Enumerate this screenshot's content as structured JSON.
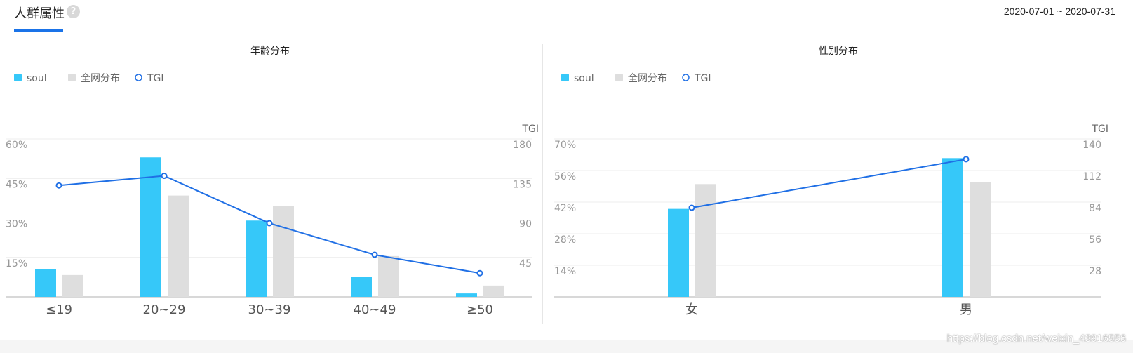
{
  "header": {
    "title": "人群属性",
    "help_icon": "question-circle-icon",
    "date_range": "2020-07-01 ~ 2020-07-31"
  },
  "watermark": "https://blog.csdn.net/weixin_43916556",
  "colors": {
    "soul": "#36c8f9",
    "all": "#dedede",
    "tgi": "#1f6fe5",
    "accent": "#1a73e8"
  },
  "chart_data": [
    {
      "type": "bar",
      "title": "年龄分布",
      "legend": [
        "soul",
        "全网分布",
        "TGI"
      ],
      "legend_position": "top-left",
      "categories": [
        "≤19",
        "20~29",
        "30~39",
        "40~49",
        "≥50"
      ],
      "series": [
        {
          "name": "soul",
          "type": "bar",
          "values": [
            10.5,
            53,
            29,
            7.5,
            1.3
          ]
        },
        {
          "name": "全网分布",
          "type": "bar",
          "values": [
            8.3,
            38.5,
            34.5,
            15.5,
            4.3
          ]
        },
        {
          "name": "TGI",
          "type": "line",
          "axis": "right",
          "values": [
            127,
            138,
            84,
            48,
            27
          ]
        }
      ],
      "y_left": {
        "ticks": [
          "15%",
          "30%",
          "45%",
          "60%"
        ],
        "ylim": [
          0,
          60
        ]
      },
      "y_right": {
        "label": "TGI",
        "ticks": [
          "45",
          "90",
          "135",
          "180"
        ],
        "ylim": [
          0,
          180
        ]
      },
      "grid": true
    },
    {
      "type": "bar",
      "title": "性别分布",
      "legend": [
        "soul",
        "全网分布",
        "TGI"
      ],
      "legend_position": "top-left",
      "categories": [
        "女",
        "男"
      ],
      "series": [
        {
          "name": "soul",
          "type": "bar",
          "values": [
            39,
            61.5
          ]
        },
        {
          "name": "全网分布",
          "type": "bar",
          "values": [
            50,
            51
          ]
        },
        {
          "name": "TGI",
          "type": "line",
          "axis": "right",
          "values": [
            79,
            122
          ]
        }
      ],
      "y_left": {
        "ticks": [
          "14%",
          "28%",
          "42%",
          "56%",
          "70%"
        ],
        "ylim": [
          0,
          70
        ]
      },
      "y_right": {
        "label": "TGI",
        "ticks": [
          "28",
          "56",
          "84",
          "112",
          "140"
        ],
        "ylim": [
          0,
          140
        ]
      },
      "grid": true
    }
  ]
}
